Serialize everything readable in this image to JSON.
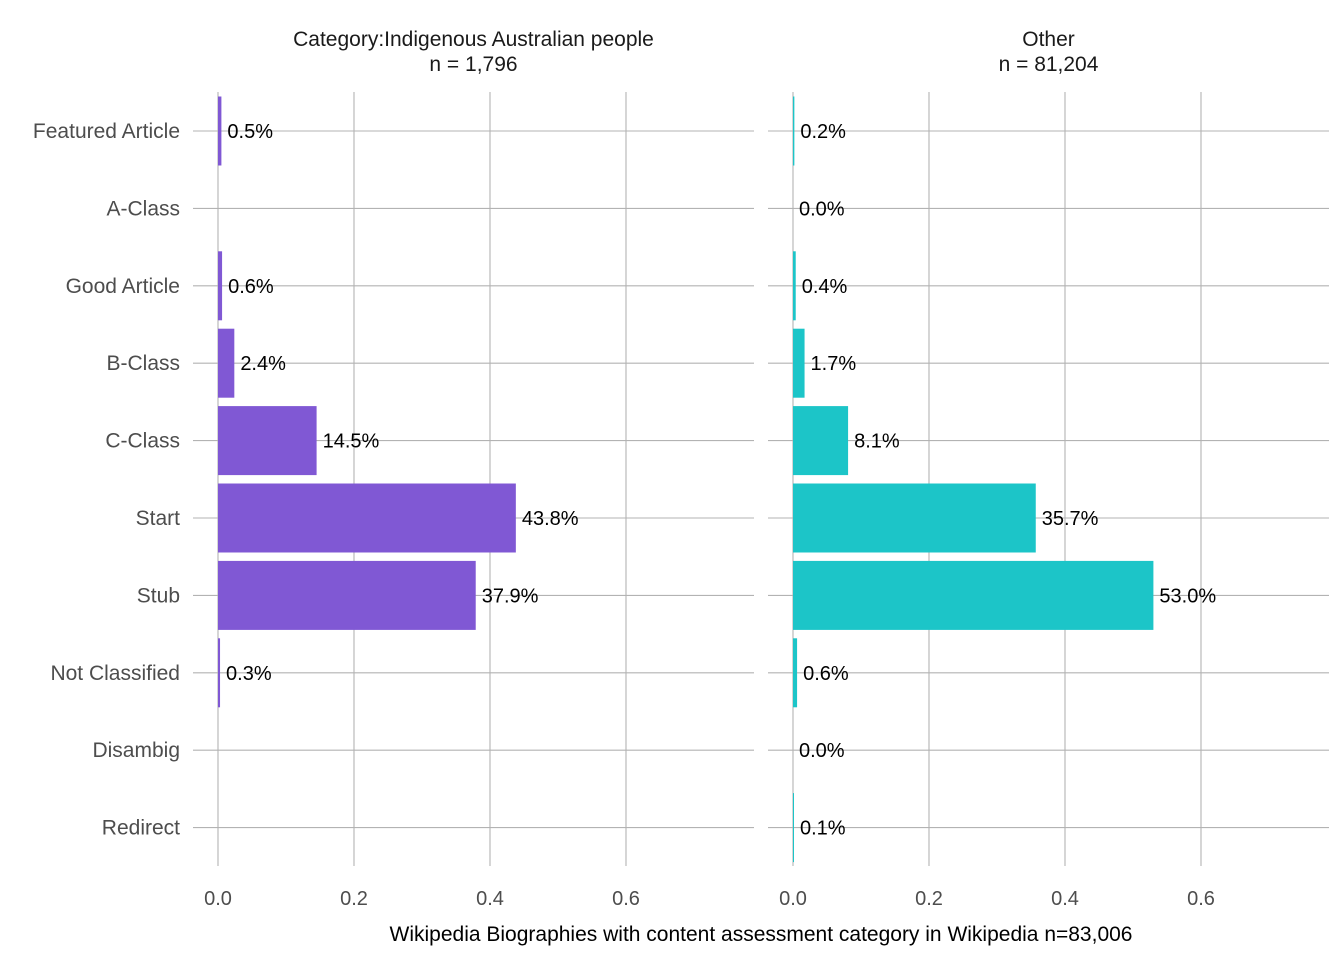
{
  "chart_data": {
    "type": "bar",
    "orientation": "horizontal",
    "categories": [
      "Featured Article",
      "A-Class",
      "Good Article",
      "B-Class",
      "C-Class",
      "Start",
      "Stub",
      "Not Classified",
      "Disambig",
      "Redirect"
    ],
    "xlabel": "Wikipedia Biographies with content assessment category in Wikipedia n=83,006",
    "ylabel": "",
    "xlim": [
      0,
      0.78
    ],
    "xticks": [
      "0.0",
      "0.2",
      "0.4",
      "0.6"
    ],
    "xtick_values": [
      0,
      0.2,
      0.4,
      0.6
    ],
    "grid": true,
    "legend": "none",
    "panels": [
      {
        "strip_line1": "Category:Indigenous Australian people",
        "strip_line2": "n = 1,796",
        "color": "#8058d4",
        "values": [
          0.005,
          0.0,
          0.006,
          0.024,
          0.145,
          0.438,
          0.379,
          0.003,
          0.0,
          0.0
        ],
        "labels": [
          "0.5%",
          "",
          "0.6%",
          "2.4%",
          "14.5%",
          "43.8%",
          "37.9%",
          "0.3%",
          "",
          ""
        ]
      },
      {
        "strip_line1": "Other",
        "strip_line2": "n = 81,204",
        "color": "#1cc5c8",
        "values": [
          0.002,
          0.0,
          0.004,
          0.017,
          0.081,
          0.357,
          0.53,
          0.006,
          0.0,
          0.001
        ],
        "labels": [
          "0.2%",
          "0.0%",
          "0.4%",
          "1.7%",
          "8.1%",
          "35.7%",
          "53.0%",
          "0.6%",
          "0.0%",
          "0.1%"
        ]
      }
    ]
  }
}
